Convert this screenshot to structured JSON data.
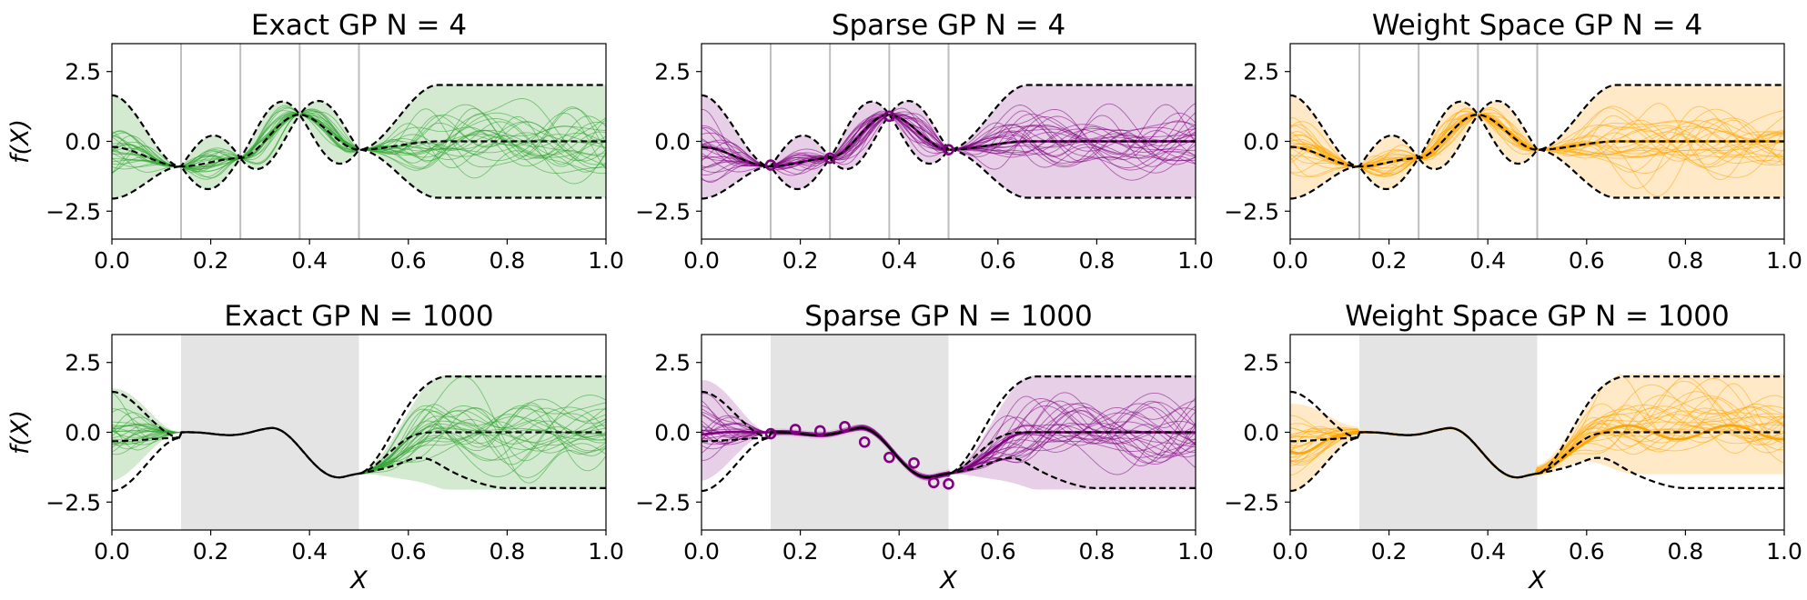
{
  "figure": {
    "background": "#ffffff",
    "ylabel": "f(X)",
    "xlabel": "X",
    "xticks": [
      "0.0",
      "0.2",
      "0.4",
      "0.6",
      "0.8",
      "1.0"
    ],
    "yticks": [
      "2.5",
      "0.0",
      "−2.5"
    ],
    "colors": {
      "exact": "#2ca02c",
      "exact_fill": "#cbe6c8",
      "sparse": "#800080",
      "sparse_fill": "#e3c8e3",
      "weight": "#ffa500",
      "weight_fill": "#ffe5bd",
      "prior": "#000000",
      "observed": "#bebebe",
      "region": "#e4e4e4"
    }
  },
  "chart_data": [
    {
      "type": "line",
      "method": "exact",
      "row": 0,
      "col": 0,
      "title": "Exact GP N = 4",
      "xlim": [
        0,
        1
      ],
      "ylim": [
        -3.5,
        3.5
      ],
      "xticks": [
        0,
        0.2,
        0.4,
        0.6,
        0.8,
        1.0
      ],
      "yticks": [
        2.5,
        0,
        -2.5
      ],
      "observed_x": [
        0.14,
        0.26,
        0.38,
        0.5
      ],
      "observed_y": [
        -0.9,
        -0.6,
        0.95,
        -0.3
      ],
      "show_mean": false,
      "show_inducing": false
    },
    {
      "type": "line",
      "method": "sparse",
      "row": 0,
      "col": 1,
      "title": "Sparse GP N = 4",
      "xlim": [
        0,
        1
      ],
      "ylim": [
        -3.5,
        3.5
      ],
      "xticks": [
        0,
        0.2,
        0.4,
        0.6,
        0.8,
        1.0
      ],
      "yticks": [
        2.5,
        0,
        -2.5
      ],
      "observed_x": [
        0.14,
        0.26,
        0.38,
        0.5
      ],
      "observed_y": [
        -0.9,
        -0.6,
        0.95,
        -0.3
      ],
      "show_mean": true,
      "show_inducing": true,
      "inducing_x": [
        0.14,
        0.26,
        0.38,
        0.5
      ],
      "inducing_y": [
        -0.85,
        -0.6,
        0.9,
        -0.3
      ]
    },
    {
      "type": "line",
      "method": "weight",
      "row": 0,
      "col": 2,
      "title": "Weight Space GP N = 4",
      "xlim": [
        0,
        1
      ],
      "ylim": [
        -3.5,
        3.5
      ],
      "xticks": [
        0,
        0.2,
        0.4,
        0.6,
        0.8,
        1.0
      ],
      "yticks": [
        2.5,
        0,
        -2.5
      ],
      "observed_x": [
        0.14,
        0.26,
        0.38,
        0.5
      ],
      "observed_y": [
        -0.9,
        -0.6,
        0.95,
        -0.3
      ],
      "show_mean": true,
      "show_inducing": false
    },
    {
      "type": "line",
      "method": "exact",
      "row": 1,
      "col": 0,
      "title": "Exact GP N = 1000",
      "xlim": [
        0,
        1
      ],
      "ylim": [
        -3.5,
        3.5
      ],
      "xticks": [
        0,
        0.2,
        0.4,
        0.6,
        0.8,
        1.0
      ],
      "yticks": [
        2.5,
        0,
        -2.5
      ],
      "observed_region": [
        0.14,
        0.5
      ],
      "show_mean": false,
      "show_inducing": false
    },
    {
      "type": "line",
      "method": "sparse",
      "row": 1,
      "col": 1,
      "title": "Sparse GP N = 1000",
      "xlim": [
        0,
        1
      ],
      "ylim": [
        -3.5,
        3.5
      ],
      "xticks": [
        0,
        0.2,
        0.4,
        0.6,
        0.8,
        1.0
      ],
      "yticks": [
        2.5,
        0,
        -2.5
      ],
      "observed_region": [
        0.14,
        0.5
      ],
      "show_mean": true,
      "show_inducing": true,
      "inducing_x": [
        0.14,
        0.19,
        0.24,
        0.29,
        0.33,
        0.38,
        0.43,
        0.47,
        0.5
      ],
      "inducing_y": [
        -0.05,
        0.1,
        0.05,
        0.2,
        -0.35,
        -0.9,
        -1.1,
        -1.8,
        -1.85
      ]
    },
    {
      "type": "line",
      "method": "weight",
      "row": 1,
      "col": 2,
      "title": "Weight Space GP N = 1000",
      "xlim": [
        0,
        1
      ],
      "ylim": [
        -3.5,
        3.5
      ],
      "xticks": [
        0,
        0.2,
        0.4,
        0.6,
        0.8,
        1.0
      ],
      "yticks": [
        2.5,
        0,
        -2.5
      ],
      "observed_region": [
        0.14,
        0.5
      ],
      "show_mean": true,
      "show_inducing": false
    }
  ]
}
